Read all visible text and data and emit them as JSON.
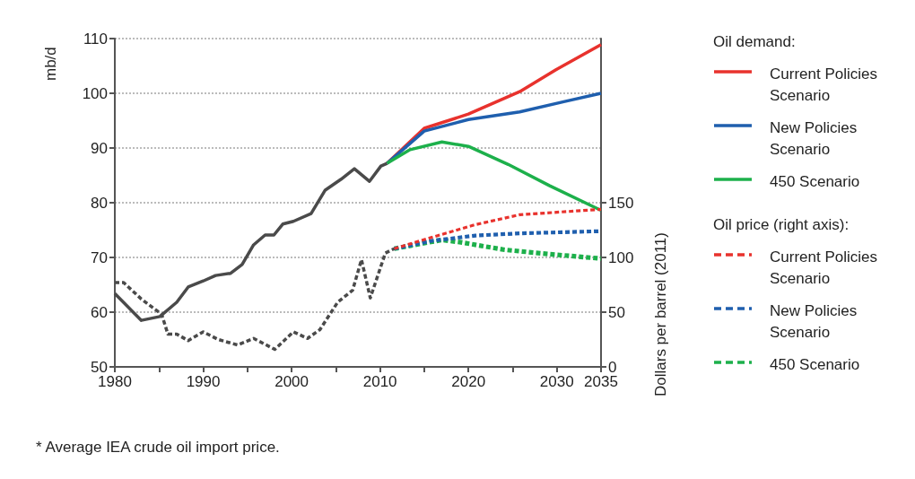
{
  "chart_data": {
    "type": "line",
    "ylabel": "mb/d",
    "y2label": "Dollars per barrel (2011)",
    "annotations": [
      "Oil demand:",
      "Oil price (right axis):",
      "* Average IEA crude oil import price."
    ],
    "xlim": [
      1980,
      2035
    ],
    "xticks": [
      1980,
      {
        "value": 1985,
        "label": null
      },
      1990,
      {
        "value": 1995,
        "label": null
      },
      2000,
      {
        "value": 2005,
        "label": null
      },
      2010,
      {
        "value": 2015,
        "label": null
      },
      2020,
      {
        "value": 2025,
        "label": null
      },
      2030,
      2035
    ],
    "ylim": [
      50,
      110
    ],
    "yticks": [
      50,
      60,
      70,
      80,
      90,
      100,
      110
    ],
    "y2lim": [
      0,
      300
    ],
    "y2ticks": [
      0,
      50,
      100,
      150
    ],
    "grid": "y",
    "legend": "right",
    "marker": "none",
    "series": [
      {
        "color": "#4a4a4a",
        "line_style": "solid",
        "x": [
          1980,
          1983,
          1985.1,
          1987,
          1988.3,
          1990,
          1991.4,
          1993.1,
          1994.4,
          1995.7,
          1997,
          1998,
          1999,
          2000.2,
          2002.2,
          2003.8,
          2005.6,
          2007.1,
          2008.8,
          2010.1,
          2010.8
        ],
        "values": [
          63.4,
          58.5,
          59.2,
          61.8,
          64.6,
          65.7,
          66.7,
          67.1,
          68.7,
          72.3,
          74.1,
          74.1,
          76.1,
          76.6,
          78.0,
          82.3,
          84.3,
          86.2,
          83.9,
          86.7,
          87.2
        ]
      },
      {
        "name": "Current Policies Scenario",
        "color": "#e8322d",
        "line_style": "solid",
        "x": [
          2010.8,
          2015,
          2020,
          2025.8,
          2029.9,
          2035
        ],
        "values": [
          87.2,
          93.6,
          96.2,
          100.3,
          104.3,
          108.9
        ]
      },
      {
        "name": "New Policies Scenario",
        "color": "#1f5fae",
        "line_style": "solid",
        "x": [
          2010.8,
          2015,
          2020,
          2025.8,
          2030.9,
          2035
        ],
        "values": [
          87.2,
          93.1,
          95.2,
          96.6,
          98.5,
          100
        ]
      },
      {
        "name": "450 Scenario",
        "color": "#1db04b",
        "line_style": "solid",
        "x": [
          2010.8,
          2013.4,
          2017,
          2020,
          2024.5,
          2029.2,
          2035
        ],
        "values": [
          87.2,
          89.7,
          91.1,
          90.3,
          87,
          83.1,
          78.6
        ]
      },
      {
        "color": "#4a4a4a",
        "line_style": "dashed",
        "axis": "y2",
        "x": [
          1980,
          1981,
          1983,
          1985.3,
          1986,
          1987,
          1988.3,
          1990,
          1991.7,
          1993.9,
          1995.7,
          1998.1,
          2000.2,
          2001.8,
          2003.2,
          2005.2,
          2006.9,
          2007.9,
          2008.9,
          2010.6,
          2011.6
        ],
        "values": [
          77,
          77,
          62,
          48,
          30,
          30,
          24,
          32,
          25,
          20,
          26,
          16,
          32,
          26,
          34,
          59,
          70,
          98,
          63,
          104,
          108
        ]
      },
      {
        "name": "Current Policies Scenario",
        "color": "#e8322d",
        "line_style": "dashed",
        "axis": "y2",
        "x": [
          2011.6,
          2015.7,
          2020.8,
          2025.8,
          2035
        ],
        "values": [
          108,
          118,
          130,
          139,
          144
        ]
      },
      {
        "name": "New Policies Scenario",
        "color": "#1f5fae",
        "line_style": "dashed",
        "axis": "y2",
        "x": [
          2011.6,
          2015.7,
          2020.8,
          2025.8,
          2035
        ],
        "values": [
          108,
          115,
          120,
          122,
          124
        ]
      },
      {
        "name": "450 Scenario",
        "color": "#1db04b",
        "line_style": "dashed",
        "axis": "y2",
        "x": [
          2011.6,
          2017,
          2019,
          2024.1,
          2029.2,
          2035
        ],
        "values": [
          108,
          116,
          114,
          107,
          103,
          99
        ]
      }
    ]
  }
}
